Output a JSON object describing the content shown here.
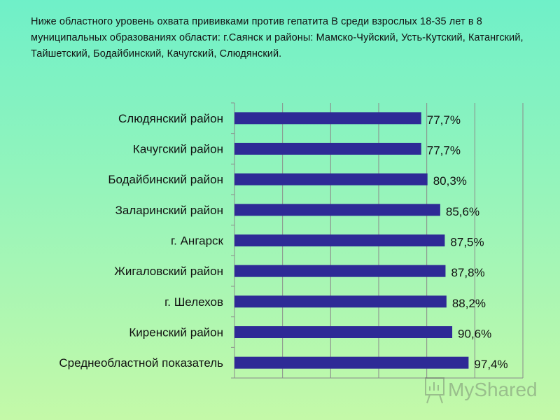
{
  "intro_text": "Ниже областного уровень охвата прививками против гепатита В среди взрослых 18-35 лет в 8 муниципальных образованиях области: г.Саянск и районы: Мамско-Чуйский, Усть-Кутский, Катангский, Тайшетский, Бодайбинский, Качугский, Слюдянский.",
  "chart_data": {
    "type": "bar",
    "orientation": "horizontal",
    "categories": [
      "Слюдянский район",
      "Качугский район",
      "Бодайбинский район",
      "Заларинский район",
      "г. Ангарск",
      "Жигаловский район",
      "г. Шелехов",
      "Киренский район",
      "Среднеобластной показатель"
    ],
    "values": [
      77.7,
      77.7,
      80.3,
      85.6,
      87.5,
      87.8,
      88.2,
      90.6,
      97.4
    ],
    "value_labels": [
      "77,7%",
      "77,7%",
      "80,3%",
      "85,6%",
      "87,5%",
      "87,8%",
      "88,2%",
      "90,6%",
      "97,4%"
    ],
    "xlim": [
      0,
      120
    ],
    "grid": true,
    "bar_color": "#2e2a96"
  },
  "watermark": {
    "text": "MyShared",
    "icon": "presentation-board-icon"
  }
}
